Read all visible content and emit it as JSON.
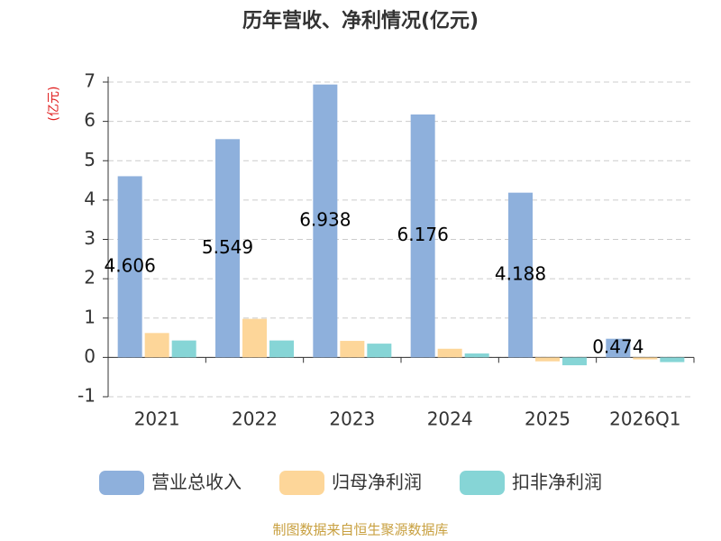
{
  "chart_data": {
    "type": "bar",
    "title": "历年营收、净利情况(亿元)",
    "y_label": "(亿元)",
    "source": "制图数据来自恒生聚源数据库",
    "categories": [
      "2021",
      "2022",
      "2023",
      "2024",
      "2025",
      "2026Q1"
    ],
    "series": [
      {
        "name": "营业总收入",
        "color": "#8eb0dc",
        "values": [
          4.606,
          5.549,
          6.938,
          6.176,
          4.188,
          0.474
        ],
        "show_values": true
      },
      {
        "name": "归母净利润",
        "color": "#fdd699",
        "values": [
          0.62,
          0.98,
          0.42,
          0.22,
          -0.1,
          -0.05
        ]
      },
      {
        "name": "扣非净利润",
        "color": "#86d5d6",
        "values": [
          0.43,
          0.43,
          0.35,
          0.1,
          -0.2,
          -0.12
        ]
      }
    ],
    "ylim": [
      -1,
      7
    ],
    "yticks": [
      -1,
      0,
      1,
      2,
      3,
      4,
      5,
      6,
      7
    ],
    "grid": true
  }
}
